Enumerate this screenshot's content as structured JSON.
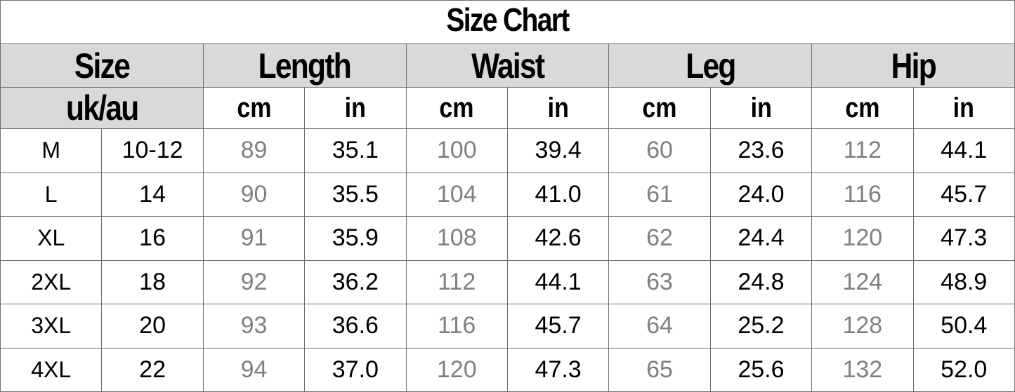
{
  "title": "Size Chart",
  "headers": {
    "size": "Size",
    "region": "uk/au",
    "length": "Length",
    "waist": "Waist",
    "leg": "Leg",
    "hip": "Hip",
    "cm": "cm",
    "in": "in"
  },
  "colors": {
    "header_bg": "#d9d9d9",
    "cm_text": "#808080",
    "in_text": "#000000"
  },
  "chart_data": {
    "type": "table",
    "title": "Size Chart",
    "columns": [
      "Size",
      "uk/au",
      "Length cm",
      "Length in",
      "Waist cm",
      "Waist in",
      "Leg cm",
      "Leg in",
      "Hip cm",
      "Hip in"
    ],
    "rows": [
      [
        "M",
        "10-12",
        "89",
        "35.1",
        "100",
        "39.4",
        "60",
        "23.6",
        "112",
        "44.1"
      ],
      [
        "L",
        "14",
        "90",
        "35.5",
        "104",
        "41.0",
        "61",
        "24.0",
        "116",
        "45.7"
      ],
      [
        "XL",
        "16",
        "91",
        "35.9",
        "108",
        "42.6",
        "62",
        "24.4",
        "120",
        "47.3"
      ],
      [
        "2XL",
        "18",
        "92",
        "36.2",
        "112",
        "44.1",
        "63",
        "24.8",
        "124",
        "48.9"
      ],
      [
        "3XL",
        "20",
        "93",
        "36.6",
        "116",
        "45.7",
        "64",
        "25.2",
        "128",
        "50.4"
      ],
      [
        "4XL",
        "22",
        "94",
        "37.0",
        "120",
        "47.3",
        "65",
        "25.6",
        "132",
        "52.0"
      ]
    ]
  }
}
